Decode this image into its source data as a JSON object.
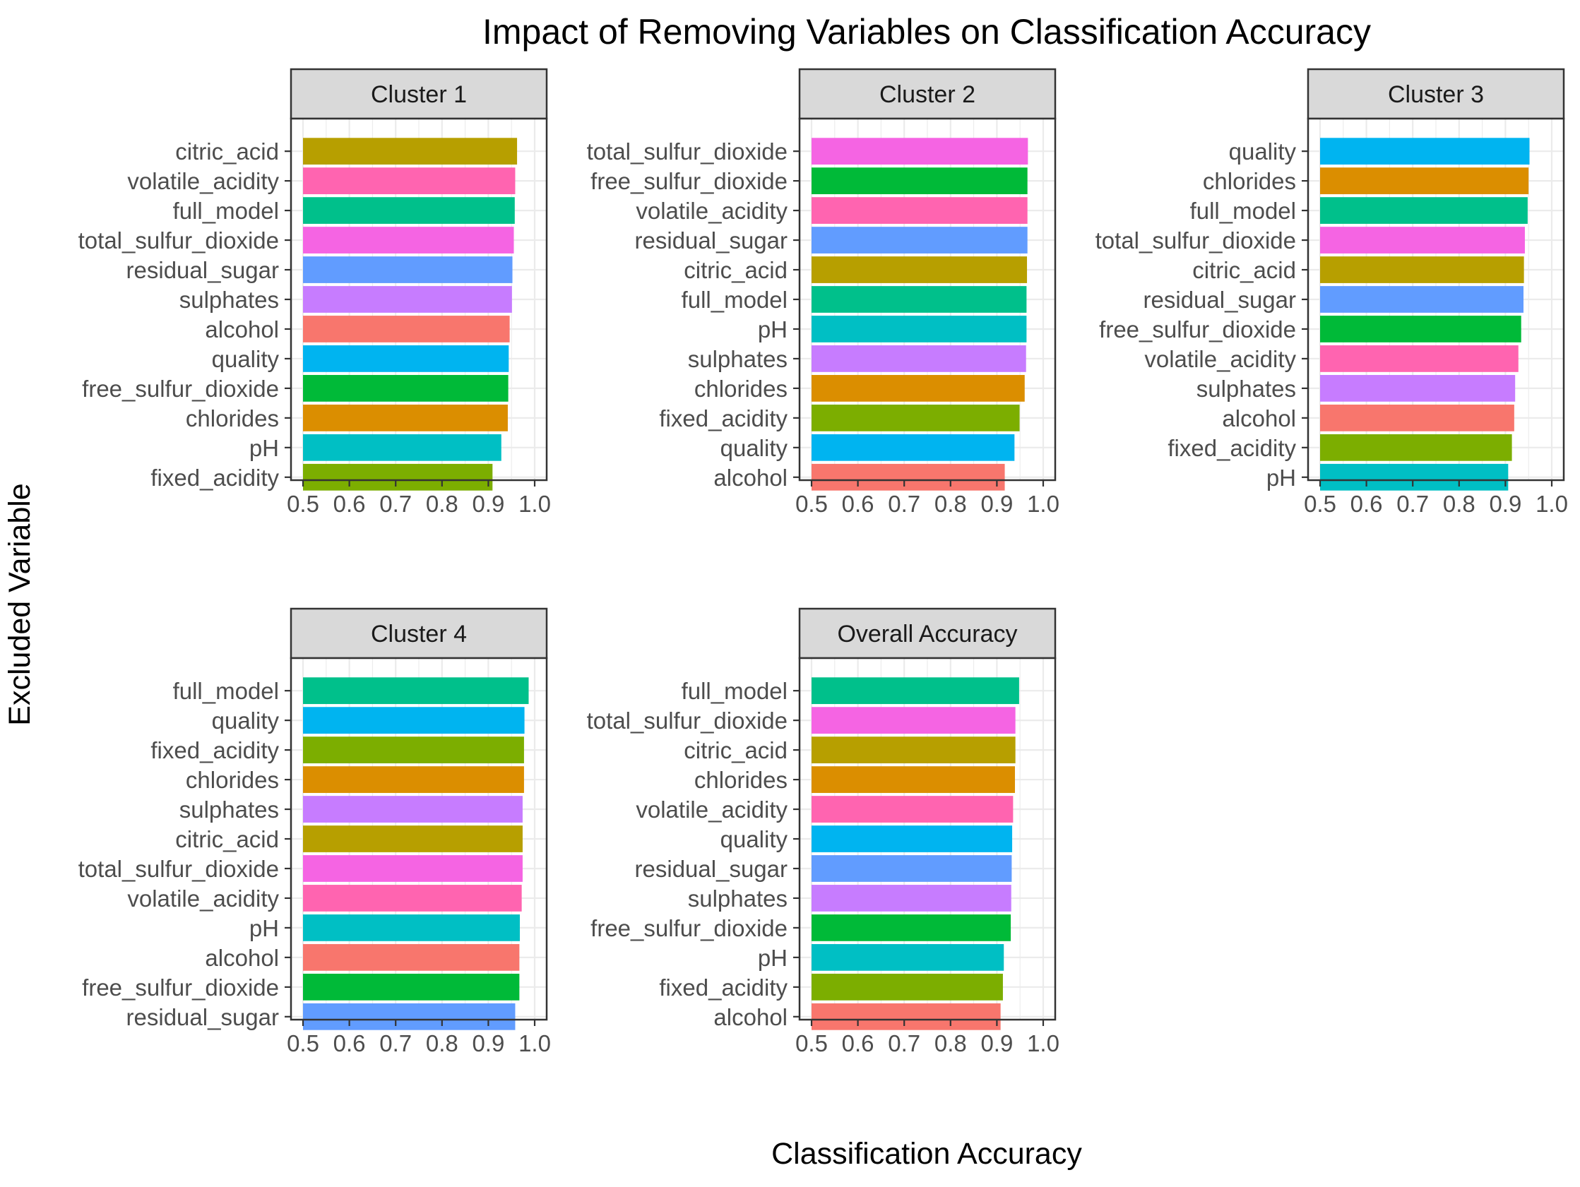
{
  "chart_data": {
    "type": "bar",
    "orientation": "horizontal",
    "title": "Impact of Removing Variables on Classification Accuracy",
    "xlabel": "Classification Accuracy",
    "ylabel": "Excluded Variable",
    "xlim": [
      0.5,
      1.0
    ],
    "x_ticks": [
      "0.5",
      "0.6",
      "0.7",
      "0.8",
      "0.9",
      "1.0"
    ],
    "grid": true,
    "colors": {
      "alcohol": "#F8766D",
      "chlorides": "#DB8E00",
      "citric_acid": "#B79F00",
      "fixed_acidity": "#7CAE00",
      "free_sulfur_dioxide": "#00BA38",
      "full_model": "#00C08B",
      "pH": "#00BFC4",
      "quality": "#00B4F0",
      "residual_sugar": "#619CFF",
      "sulphates": "#C77CFF",
      "total_sulfur_dioxide": "#F564E3",
      "volatile_acidity": "#FF64B0"
    },
    "panels": [
      {
        "label": "Cluster 1",
        "categories": [
          "citric_acid",
          "volatile_acidity",
          "full_model",
          "total_sulfur_dioxide",
          "residual_sugar",
          "sulphates",
          "alcohol",
          "quality",
          "free_sulfur_dioxide",
          "chlorides",
          "pH",
          "fixed_acidity"
        ],
        "values": [
          0.962,
          0.958,
          0.957,
          0.955,
          0.952,
          0.951,
          0.946,
          0.944,
          0.943,
          0.942,
          0.928,
          0.909
        ]
      },
      {
        "label": "Cluster 2",
        "categories": [
          "total_sulfur_dioxide",
          "free_sulfur_dioxide",
          "volatile_acidity",
          "residual_sugar",
          "citric_acid",
          "full_model",
          "pH",
          "sulphates",
          "chlorides",
          "fixed_acidity",
          "quality",
          "alcohol"
        ],
        "values": [
          0.967,
          0.966,
          0.966,
          0.966,
          0.965,
          0.964,
          0.964,
          0.963,
          0.96,
          0.949,
          0.938,
          0.917
        ]
      },
      {
        "label": "Cluster 3",
        "categories": [
          "quality",
          "chlorides",
          "full_model",
          "total_sulfur_dioxide",
          "citric_acid",
          "residual_sugar",
          "free_sulfur_dioxide",
          "volatile_acidity",
          "sulphates",
          "alcohol",
          "fixed_acidity",
          "pH"
        ],
        "values": [
          0.952,
          0.95,
          0.948,
          0.942,
          0.94,
          0.939,
          0.934,
          0.928,
          0.921,
          0.919,
          0.914,
          0.906
        ]
      },
      {
        "label": "Cluster 4",
        "categories": [
          "full_model",
          "quality",
          "fixed_acidity",
          "chlorides",
          "sulphates",
          "citric_acid",
          "total_sulfur_dioxide",
          "volatile_acidity",
          "pH",
          "alcohol",
          "free_sulfur_dioxide",
          "residual_sugar"
        ],
        "values": [
          0.987,
          0.978,
          0.977,
          0.977,
          0.974,
          0.974,
          0.974,
          0.972,
          0.968,
          0.967,
          0.967,
          0.958
        ]
      },
      {
        "label": "Overall Accuracy",
        "categories": [
          "full_model",
          "total_sulfur_dioxide",
          "citric_acid",
          "chlorides",
          "volatile_acidity",
          "quality",
          "residual_sugar",
          "sulphates",
          "free_sulfur_dioxide",
          "pH",
          "fixed_acidity",
          "alcohol"
        ],
        "values": [
          0.948,
          0.94,
          0.94,
          0.939,
          0.935,
          0.933,
          0.932,
          0.931,
          0.93,
          0.915,
          0.913,
          0.908
        ]
      }
    ]
  }
}
